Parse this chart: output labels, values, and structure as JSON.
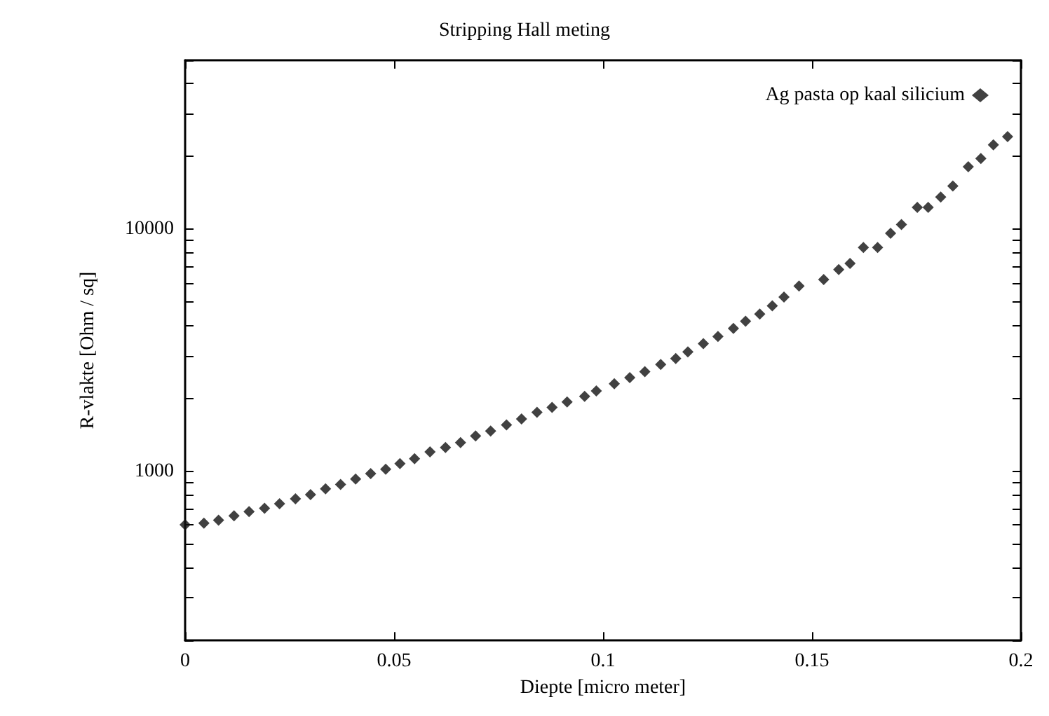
{
  "chart_data": {
    "type": "scatter",
    "title": "Stripping Hall meting",
    "xlabel": "Diepte [micro meter]",
    "ylabel": "R-vlakte [Ohm / sq]",
    "x": [
      0,
      0.0045,
      0.008,
      0.0117,
      0.0153,
      0.019,
      0.0226,
      0.0264,
      0.03,
      0.0336,
      0.0372,
      0.0408,
      0.0444,
      0.048,
      0.0514,
      0.0549,
      0.0586,
      0.0623,
      0.0659,
      0.0695,
      0.0731,
      0.0769,
      0.0805,
      0.0842,
      0.0878,
      0.0914,
      0.0956,
      0.0984,
      0.1027,
      0.1064,
      0.11,
      0.1138,
      0.1174,
      0.1203,
      0.124,
      0.1275,
      0.1312,
      0.1341,
      0.1375,
      0.1405,
      0.1433,
      0.1469,
      0.1528,
      0.1564,
      0.1591,
      0.1623,
      0.1657,
      0.1688,
      0.1714,
      0.1752,
      0.1778,
      0.1808,
      0.1837,
      0.1874,
      0.1904,
      0.1934,
      0.1968
    ],
    "series": [
      {
        "name": "Ag pasta op kaal silicium",
        "color": "#111111",
        "values": [
          602,
          611,
          628,
          655,
          682,
          704,
          735,
          770,
          802,
          846,
          882,
          929,
          979,
          1021,
          1076,
          1127,
          1203,
          1255,
          1315,
          1400,
          1468,
          1555,
          1647,
          1753,
          1838,
          1936,
          2040,
          2150,
          2301,
          2438,
          2582,
          2763,
          2925,
          3116,
          3371,
          3607,
          3900,
          4174,
          4467,
          4831,
          5254,
          5834,
          6209,
          6823,
          7228,
          8412,
          8412,
          9641,
          10480,
          12320,
          12320,
          13610,
          15110,
          18140,
          19620,
          22340,
          24190
        ]
      }
    ],
    "xlim": [
      0,
      0.2
    ],
    "xticks": [
      0,
      0.05,
      0.1,
      0.15,
      0.2
    ],
    "ylim": [
      200,
      50000
    ],
    "log": true,
    "yticks": [
      {
        "value": 200,
        "label": null
      },
      {
        "value": 300,
        "label": null
      },
      {
        "value": 400,
        "label": null
      },
      {
        "value": 500,
        "label": null
      },
      {
        "value": 600,
        "label": null
      },
      {
        "value": 700,
        "label": null
      },
      {
        "value": 800,
        "label": null
      },
      {
        "value": 900,
        "label": null
      },
      1000,
      {
        "value": 2000,
        "label": null
      },
      {
        "value": 3000,
        "label": null
      },
      {
        "value": 4000,
        "label": null
      },
      {
        "value": 5000,
        "label": null
      },
      {
        "value": 6000,
        "label": null
      },
      {
        "value": 7000,
        "label": null
      },
      {
        "value": 8000,
        "label": null
      },
      {
        "value": 9000,
        "label": null
      },
      10000,
      {
        "value": 20000,
        "label": null
      },
      {
        "value": 30000,
        "label": null
      },
      {
        "value": 40000,
        "label": null
      },
      {
        "value": 50000,
        "label": null
      }
    ],
    "marker": "diamond",
    "grid": false,
    "legend": "top right"
  }
}
